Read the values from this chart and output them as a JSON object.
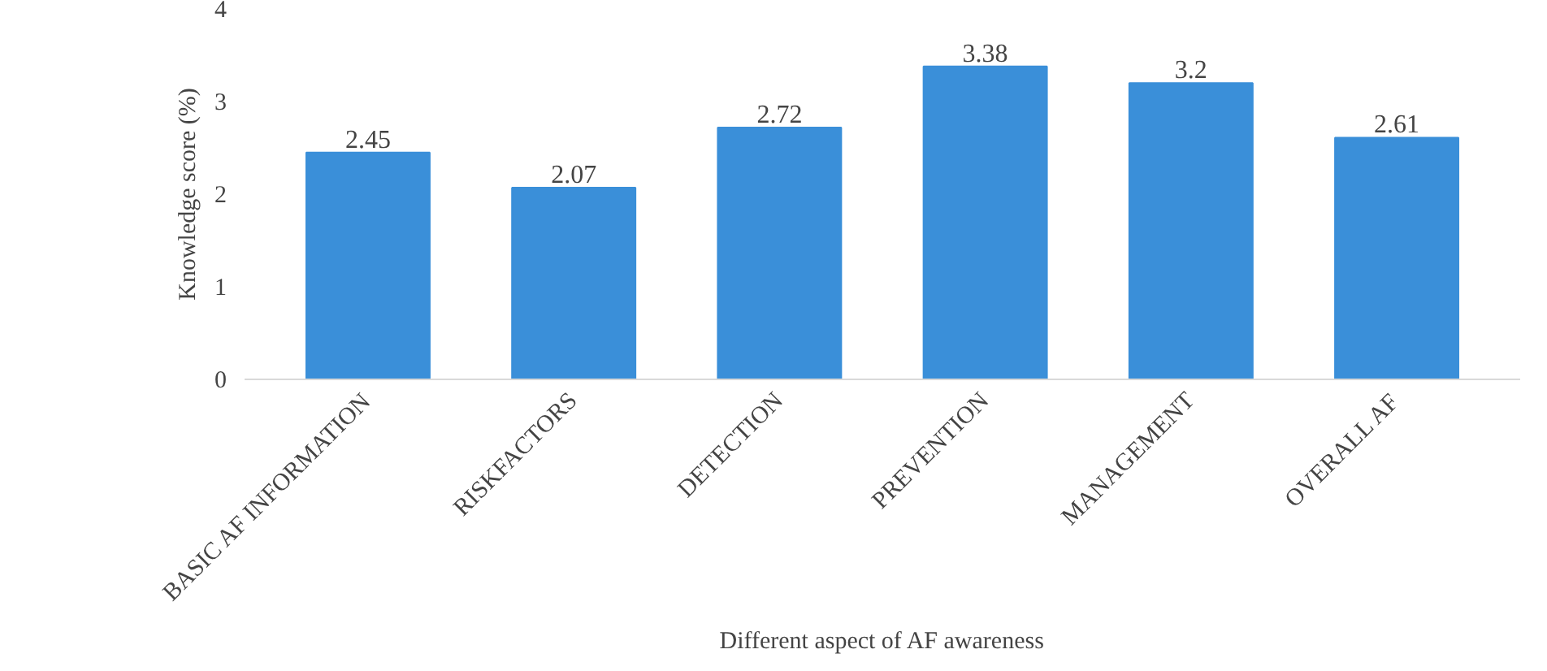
{
  "chart_data": {
    "type": "bar",
    "xlabel": "Different aspect of AF awareness",
    "ylabel": "Knowledge score (%)",
    "categories": [
      "BASIC AF INFORMATION",
      "RISKFACTORS",
      "DETECTION",
      "PREVENTION",
      "MANAGEMENT",
      "OVERALL AF"
    ],
    "values": [
      2.45,
      2.07,
      2.72,
      3.38,
      3.2,
      2.61
    ],
    "color": "#3a8fd9",
    "ylim": [
      0,
      4
    ],
    "yticks": [
      0,
      1,
      2,
      3,
      4
    ],
    "grid": false,
    "data_labels": true
  }
}
